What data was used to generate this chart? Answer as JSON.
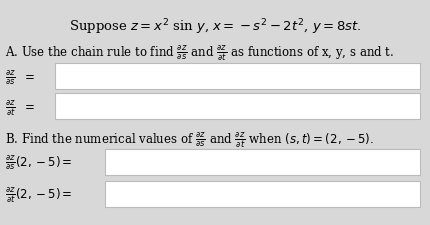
{
  "title": "Suppose $z = x^2$ sin $y$, $x = -s^2 - 2t^2$, $y = 8st.$",
  "part_a_label": "A. Use the chain rule to find $\\frac{\\partial z}{\\partial s}$ and $\\frac{\\partial z}{\\partial t}$ as functions of x, y, s and t.",
  "part_b_label": "B. Find the numerical values of $\\frac{\\partial z}{\\partial s}$ and $\\frac{\\partial z}{\\partial t}$ when $(s, t) = (2, -5).$",
  "row1_label": "$\\frac{\\partial z}{\\partial s}$",
  "row2_label": "$\\frac{\\partial z}{\\partial t}$",
  "row3_label": "$\\frac{\\partial z}{\\partial s}(2, -5) =$",
  "row4_label": "$\\frac{\\partial z}{\\partial t}(2, -5) =$",
  "bg_color": "#d8d8d8",
  "box_color": "#ffffff",
  "box_edge_color": "#bbbbbb",
  "text_color": "#000000",
  "title_font_size": 9.5,
  "body_font_size": 8.5,
  "label_font_size": 8.5
}
